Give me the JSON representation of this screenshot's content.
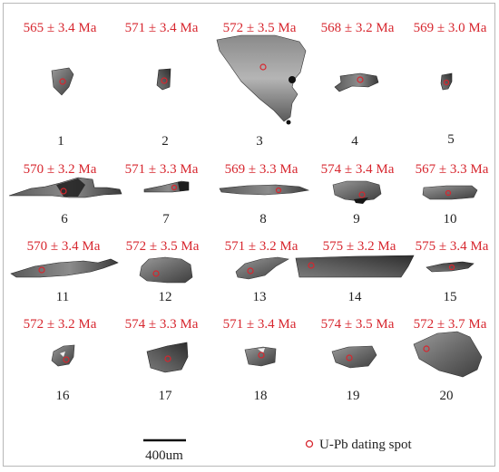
{
  "grains": [
    {
      "number": "1",
      "age": "565 ± 3.4 Ma"
    },
    {
      "number": "2",
      "age": "571 ± 3.4 Ma"
    },
    {
      "number": "3",
      "age": "572 ± 3.5 Ma"
    },
    {
      "number": "4",
      "age": "568 ± 3.2 Ma"
    },
    {
      "number": "5",
      "age": "569 ± 3.0 Ma"
    },
    {
      "number": "6",
      "age": "570 ± 3.2 Ma"
    },
    {
      "number": "7",
      "age": "571 ± 3.3 Ma"
    },
    {
      "number": "8",
      "age": "569 ± 3.3 Ma"
    },
    {
      "number": "9",
      "age": "574 ± 3.4 Ma"
    },
    {
      "number": "10",
      "age": "567 ± 3.3 Ma"
    },
    {
      "number": "11",
      "age": "570 ± 3.4 Ma"
    },
    {
      "number": "12",
      "age": "572 ± 3.5 Ma"
    },
    {
      "number": "13",
      "age": "571 ± 3.2 Ma"
    },
    {
      "number": "14",
      "age": "575 ± 3.2 Ma"
    },
    {
      "number": "15",
      "age": "575 ± 3.4 Ma"
    },
    {
      "number": "16",
      "age": "572 ± 3.2 Ma"
    },
    {
      "number": "17",
      "age": "574 ± 3.3 Ma"
    },
    {
      "number": "18",
      "age": "571 ± 3.4 Ma"
    },
    {
      "number": "19",
      "age": "574 ± 3.5 Ma"
    },
    {
      "number": "20",
      "age": "572 ± 3.7 Ma"
    }
  ],
  "scale_bar": {
    "label": "400um"
  },
  "legend": {
    "label": "U-Pb dating spot",
    "spot_color": "#d7262e"
  }
}
